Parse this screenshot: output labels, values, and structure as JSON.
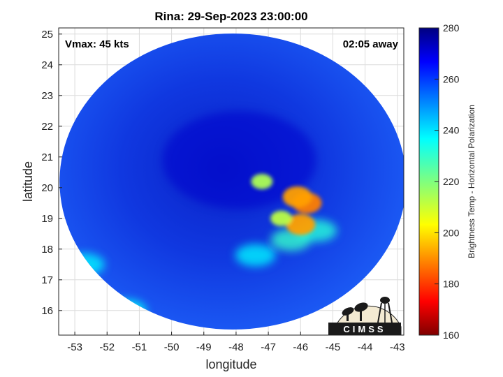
{
  "chart_data": {
    "type": "heatmap",
    "title": "Rina: 29-Sep-2023 23:00:00",
    "xlabel": "longitude",
    "ylabel": "latitude",
    "xlim": [
      -53.5,
      -42.8
    ],
    "ylim": [
      15.2,
      25.2
    ],
    "x_ticks": [
      -53,
      -52,
      -51,
      -50,
      -49,
      -48,
      -47,
      -46,
      -45,
      -44,
      -43
    ],
    "x_tick_labels": [
      "-53",
      "-52",
      "-51",
      "-50",
      "-49",
      "-48",
      "-47",
      "-46",
      "-45",
      "-44",
      "-43"
    ],
    "y_ticks": [
      16,
      17,
      18,
      19,
      20,
      21,
      22,
      23,
      24,
      25
    ],
    "y_tick_labels": [
      "16",
      "17",
      "18",
      "19",
      "20",
      "21",
      "22",
      "23",
      "24",
      "25"
    ],
    "grid": true,
    "annotations": {
      "vmax": "Vmax: 45 kts",
      "time_away": "02:05 away"
    },
    "colorbar": {
      "label": "Brightness Temp - Horizontal Polarization",
      "range": [
        160,
        280
      ],
      "ticks": [
        160,
        180,
        200,
        220,
        240,
        260,
        280
      ],
      "tick_labels": [
        "160",
        "180",
        "200",
        "220",
        "240",
        "260",
        "280"
      ],
      "colormap": "jet"
    },
    "swath": {
      "center_lon": -48.1,
      "center_lat": 20.2,
      "background_temp": 262,
      "storm_core_temp": 272
    },
    "features": [
      {
        "lon": -45.8,
        "lat": 19.5,
        "temp": 188
      },
      {
        "lon": -46.1,
        "lat": 19.7,
        "temp": 192
      },
      {
        "lon": -46.0,
        "lat": 18.8,
        "temp": 192
      },
      {
        "lon": -46.6,
        "lat": 19.0,
        "temp": 212
      },
      {
        "lon": -47.2,
        "lat": 20.2,
        "temp": 214
      },
      {
        "lon": -46.3,
        "lat": 18.3,
        "temp": 230
      },
      {
        "lon": -45.5,
        "lat": 18.6,
        "temp": 232
      },
      {
        "lon": -47.4,
        "lat": 17.8,
        "temp": 238
      },
      {
        "lon": -51.4,
        "lat": 16.0,
        "temp": 236
      },
      {
        "lon": -52.7,
        "lat": 17.5,
        "temp": 238
      }
    ],
    "logo_text": "CIMSS"
  }
}
